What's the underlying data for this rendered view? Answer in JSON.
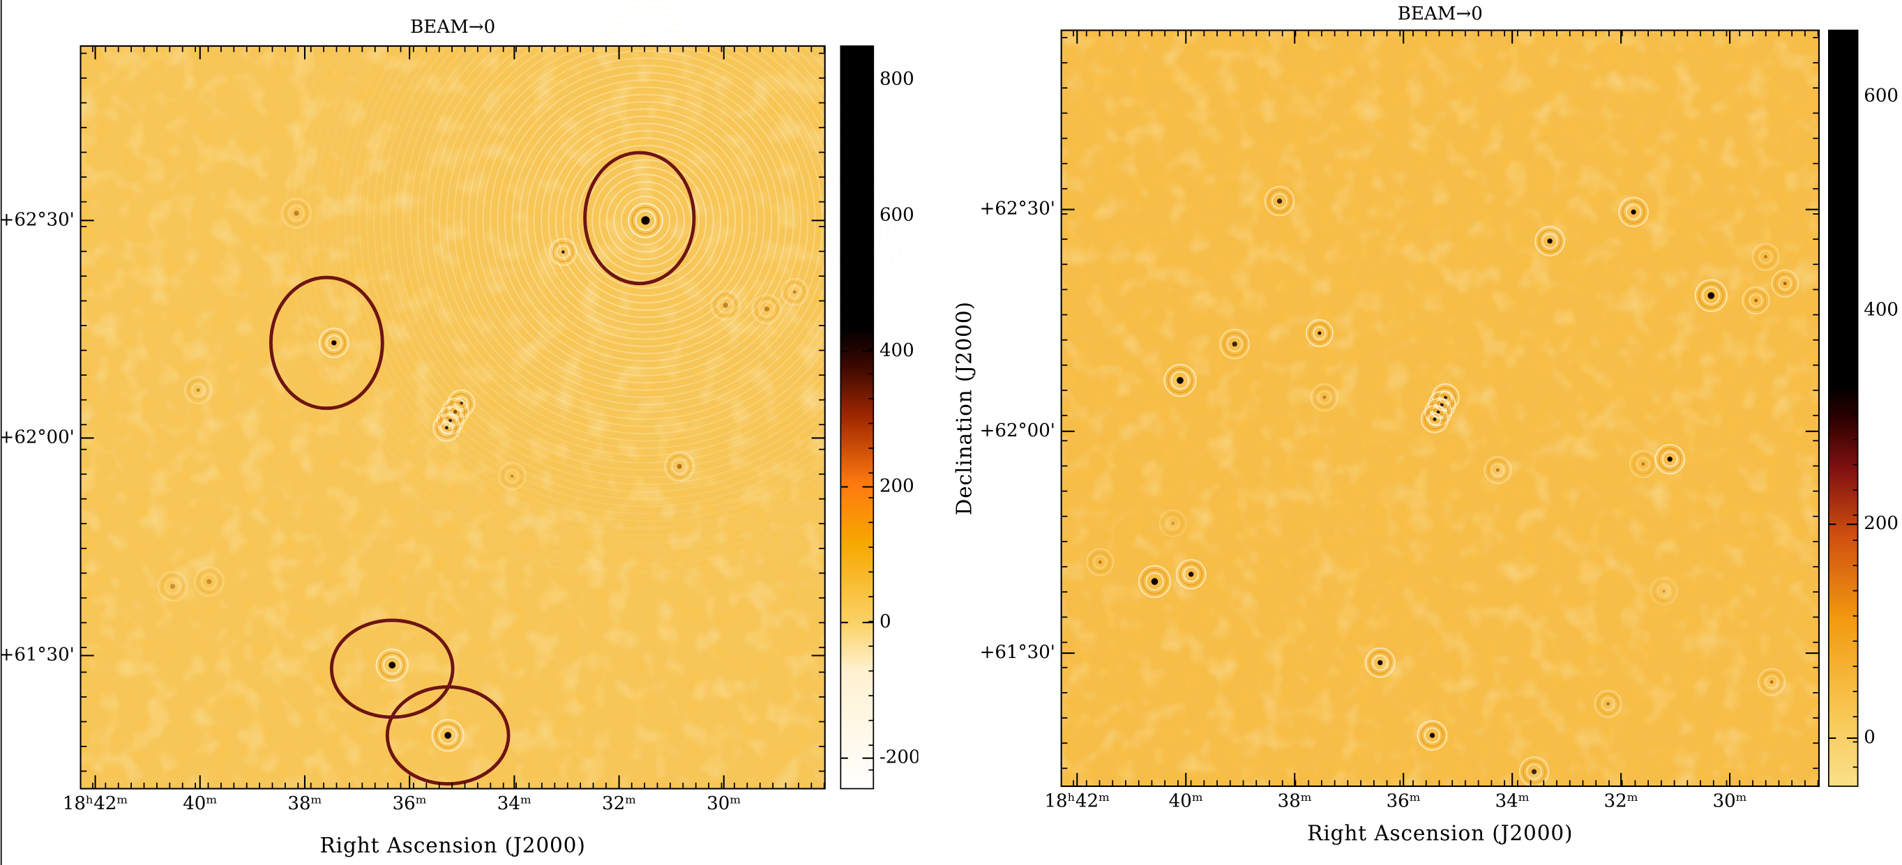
{
  "chart_data": [
    {
      "type": "image",
      "title": "BEAM→0",
      "x_label": "Right Ascension (J2000)",
      "xlim": [
        42.28,
        28.07
      ],
      "xticks": [
        {
          "value": 42,
          "label": "18ʰ42ᵐ"
        },
        {
          "value": 40,
          "label": "40ᵐ"
        },
        {
          "value": 38,
          "label": "38ᵐ"
        },
        {
          "value": 36,
          "label": "36ᵐ"
        },
        {
          "value": 34,
          "label": "34ᵐ"
        },
        {
          "value": 32,
          "label": "32ᵐ"
        },
        {
          "value": 30,
          "label": "30ᵐ"
        }
      ],
      "ylim": [
        61.194,
        62.901
      ],
      "yticks": [
        {
          "value": 62.5,
          "label": "+62°30'"
        },
        {
          "value": 62,
          "label": "+62°00'"
        },
        {
          "value": 61.5,
          "label": "+61°30'"
        }
      ],
      "colorbar": {
        "lim": [
          -245,
          850
        ],
        "ticks": [
          800,
          600,
          400,
          200,
          0,
          -200
        ]
      }
    },
    {
      "type": "image",
      "title": "BEAM→0",
      "x_label": "Right Ascension (J2000)",
      "y_label": "Declination (J2000)",
      "xlim": [
        42.29,
        28.36
      ],
      "xticks": [
        {
          "value": 42,
          "label": "18ʰ42ᵐ"
        },
        {
          "value": 40,
          "label": "40ᵐ"
        },
        {
          "value": 38,
          "label": "38ᵐ"
        },
        {
          "value": 36,
          "label": "36ᵐ"
        },
        {
          "value": 34,
          "label": "34ᵐ"
        },
        {
          "value": 32,
          "label": "32ᵐ"
        },
        {
          "value": 30,
          "label": "30ᵐ"
        }
      ],
      "ylim": [
        61.2,
        62.904
      ],
      "yticks": [
        {
          "value": 62.5,
          "label": "+62°30'"
        },
        {
          "value": 62,
          "label": "+62°00'"
        },
        {
          "value": 61.5,
          "label": "+61°30'"
        }
      ],
      "colorbar": {
        "lim": [
          -45,
          662
        ],
        "ticks": [
          600,
          400,
          200,
          0
        ]
      }
    }
  ]
}
